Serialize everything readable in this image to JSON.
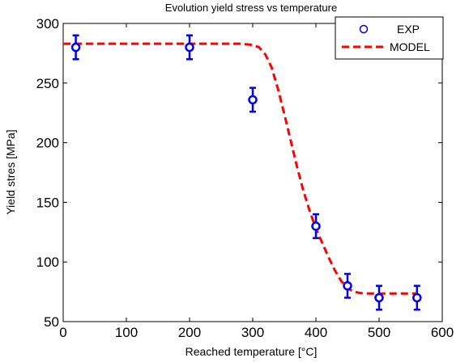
{
  "chart_data": {
    "type": "scatter",
    "title": "Evolution yield stress vs temperature",
    "xlabel": "Reached temperature [°C]",
    "ylabel": "Yield stres [MPa]",
    "xlim": [
      0,
      600
    ],
    "ylim": [
      50,
      300
    ],
    "xticks": [
      0,
      100,
      200,
      300,
      400,
      500,
      600
    ],
    "yticks": [
      50,
      100,
      150,
      200,
      250,
      300
    ],
    "grid": false,
    "legend_position": "top-right",
    "series": [
      {
        "name": "EXP",
        "kind": "points-with-errorbars",
        "color": "#0000ee",
        "x": [
          20,
          200,
          300,
          400,
          450,
          500,
          560
        ],
        "y": [
          280,
          280,
          236,
          130,
          80,
          70,
          70
        ],
        "error": [
          10,
          10,
          10,
          10,
          10,
          10,
          10
        ]
      },
      {
        "name": "MODEL",
        "kind": "dashed-line",
        "color": "#ff0000",
        "x": [
          0,
          100,
          200,
          250,
          280,
          300,
          310,
          320,
          330,
          340,
          350,
          360,
          370,
          380,
          390,
          400,
          410,
          420,
          430,
          440,
          450,
          460,
          470,
          480,
          500,
          520,
          560
        ],
        "y": [
          283,
          283,
          283,
          283,
          283,
          282,
          280,
          274,
          263,
          245,
          224,
          202,
          180,
          160,
          143,
          128,
          116,
          104,
          93,
          84,
          78,
          75,
          74,
          73.5,
          73.5,
          73.5,
          73.5
        ]
      }
    ]
  }
}
